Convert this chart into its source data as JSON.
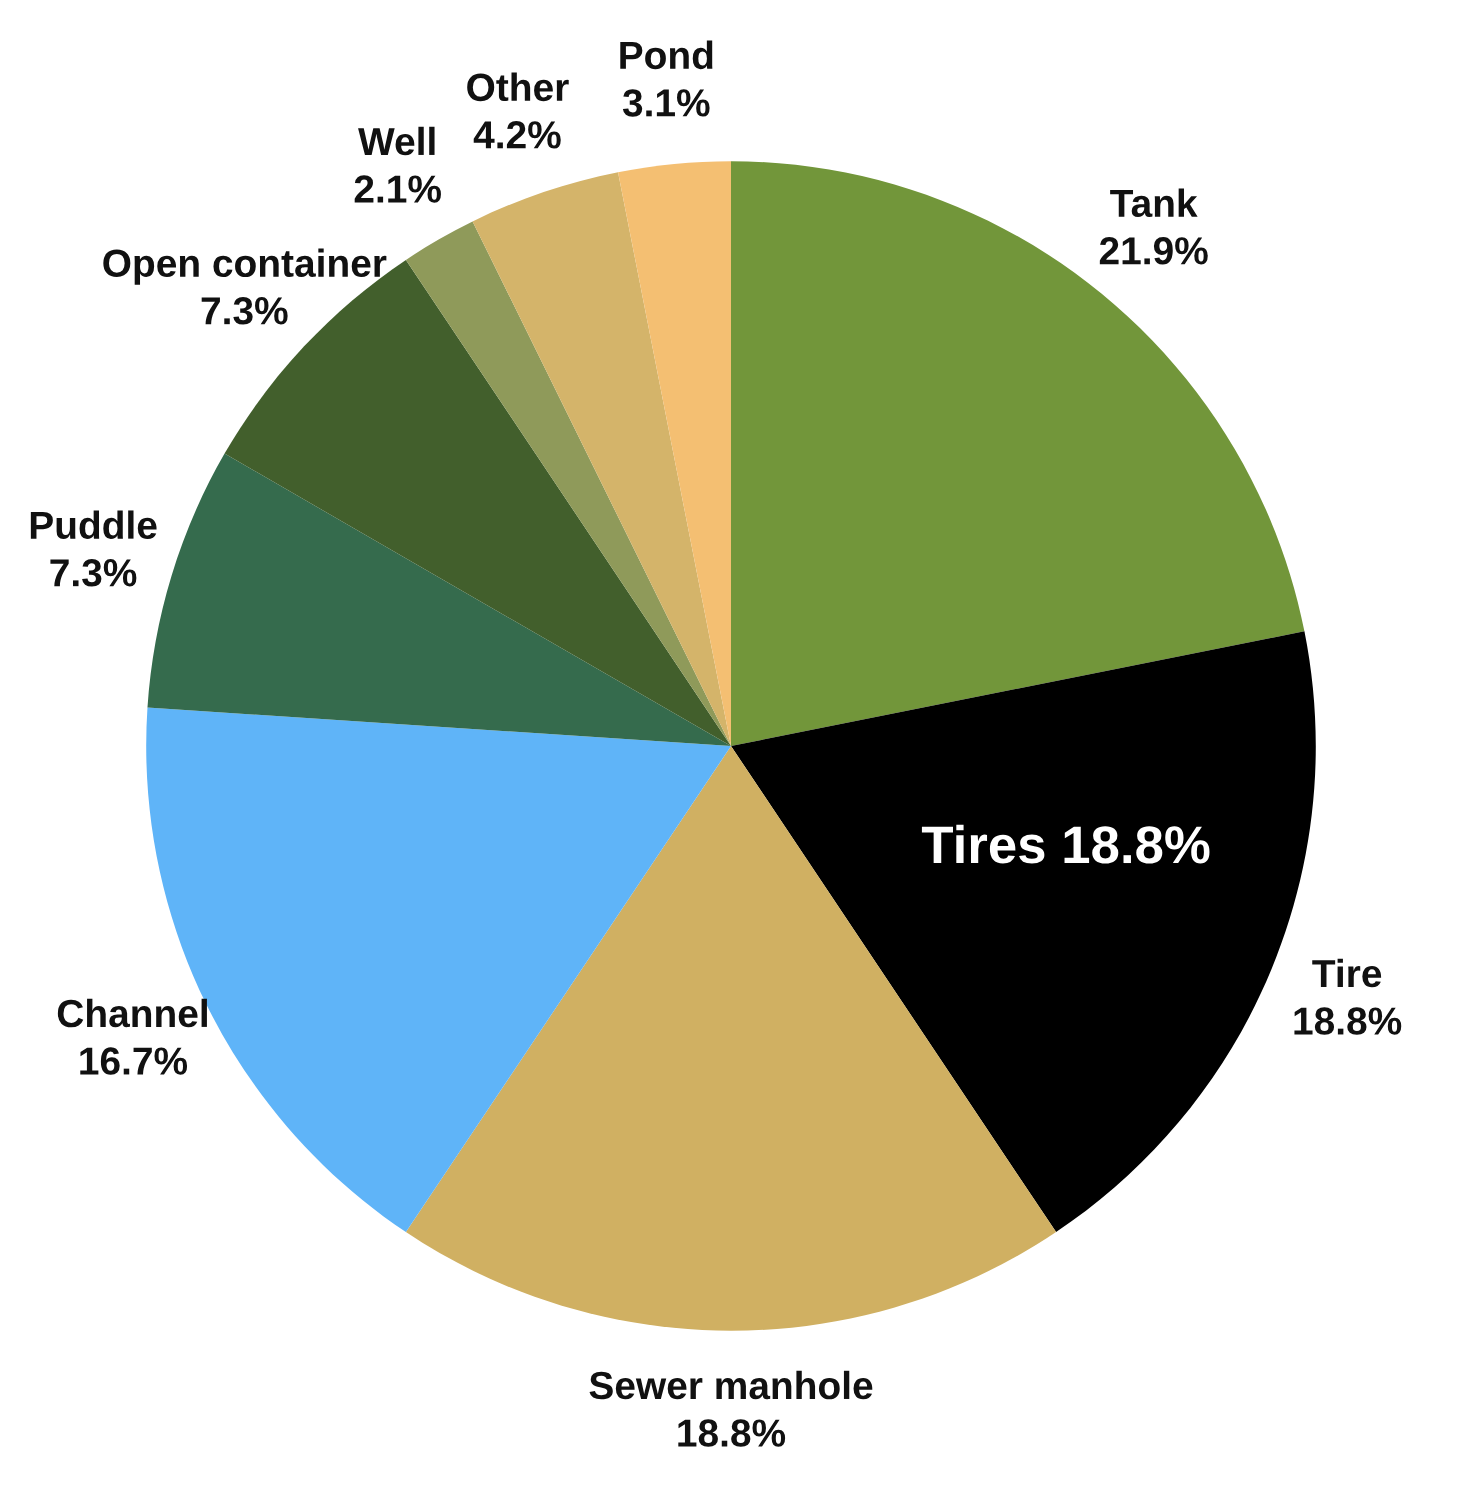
{
  "chart_data": {
    "type": "pie",
    "categories": [
      "Tank",
      "Tire",
      "Sewer manhole",
      "Channel",
      "Puddle",
      "Open container",
      "Well",
      "Other",
      "Pond"
    ],
    "values": [
      21.9,
      18.8,
      18.8,
      16.7,
      7.3,
      7.3,
      2.1,
      4.2,
      3.1
    ],
    "colors": [
      "#72963a",
      "#000000",
      "#d0b062",
      "#5fb4f8",
      "#356b4d",
      "#425f2c",
      "#8f9a5a",
      "#d4b46a",
      "#f4bf72"
    ],
    "value_labels": [
      "21.9%",
      "18.8%",
      "18.8%",
      "16.7%",
      "7.3%",
      "7.3%",
      "2.1%",
      "4.2%",
      "3.1%"
    ],
    "annotations": [
      {
        "text": "Tires 18.8%",
        "x": "Tire"
      }
    ]
  }
}
